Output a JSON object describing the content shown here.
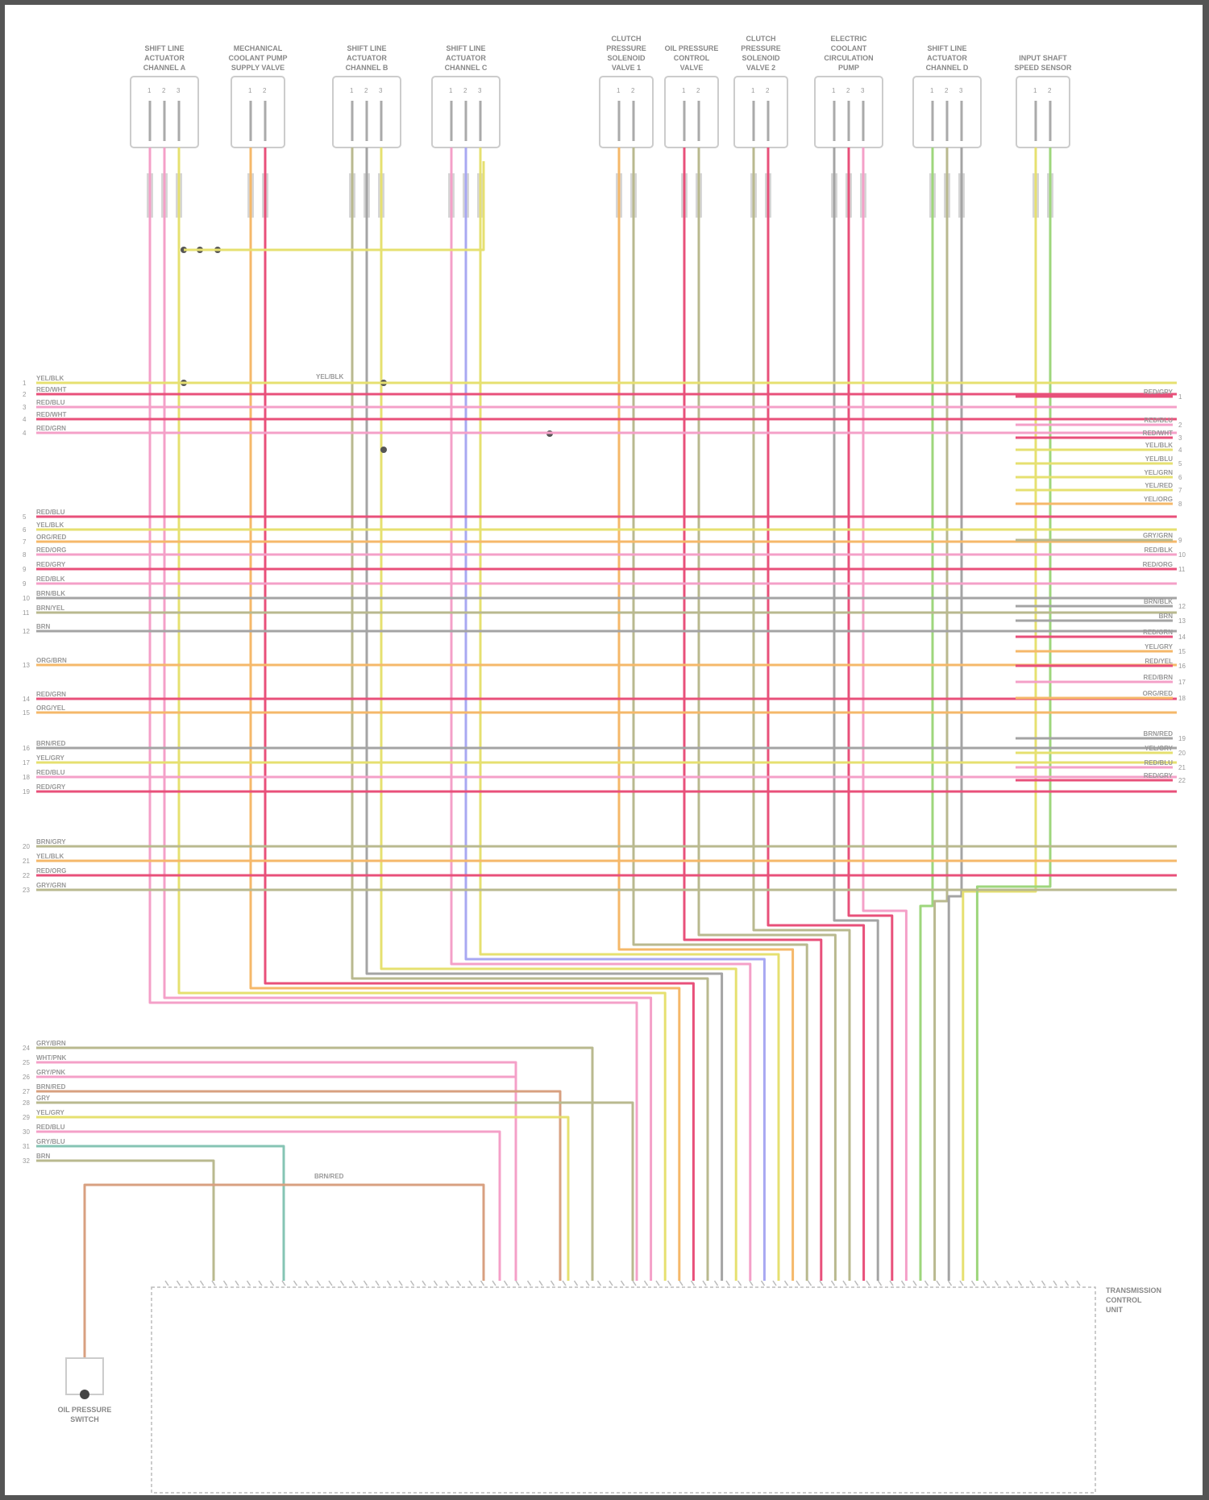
{
  "colors": {
    "yellow": "#e6e070",
    "pink": "#f4a0c8",
    "red": "#e8507a",
    "orange": "#f5b86a",
    "olive": "#b9b98f",
    "green": "#9ed67c",
    "blue": "#a8a8f2",
    "gray": "#a4a4a4",
    "teal": "#86c4b4",
    "brown": "#d8a080"
  },
  "components": [
    {
      "label": "SHIFT LINE ACTUATOR CHANNEL A",
      "pins": [
        "1",
        "2",
        "3"
      ],
      "wires": [
        "pink",
        "pink",
        "yellow"
      ]
    },
    {
      "label": "MECHANICAL COOLANT PUMP SUPPLY VALVE",
      "pins": [
        "1",
        "2"
      ],
      "wires": [
        "orange",
        "red"
      ]
    },
    {
      "label": "SHIFT LINE ACTUATOR CHANNEL B",
      "pins": [
        "1",
        "2",
        "3"
      ],
      "wires": [
        "olive",
        "gray",
        "yellow"
      ]
    },
    {
      "label": "SHIFT LINE ACTUATOR CHANNEL C",
      "pins": [
        "1",
        "2",
        "3"
      ],
      "wires": [
        "pink",
        "blue",
        "yellow"
      ]
    },
    {
      "label": "CLUTCH PRESSURE SOLENOID VALVE 1",
      "pins": [
        "1",
        "2"
      ],
      "wires": [
        "orange",
        "olive"
      ]
    },
    {
      "label": "OIL PRESSURE CONTROL VALVE",
      "pins": [
        "1",
        "2"
      ],
      "wires": [
        "red",
        "olive"
      ]
    },
    {
      "label": "CLUTCH PRESSURE SOLENOID VALVE 2",
      "pins": [
        "1",
        "2"
      ],
      "wires": [
        "olive",
        "red"
      ]
    },
    {
      "label": "ELECTRIC COOLANT CIRCULATION PUMP",
      "pins": [
        "1",
        "2",
        "3"
      ],
      "wires": [
        "gray",
        "red",
        "pink"
      ]
    },
    {
      "label": "SHIFT LINE ACTUATOR CHANNEL D",
      "pins": [
        "1",
        "2",
        "3"
      ],
      "wires": [
        "green",
        "olive",
        "gray"
      ]
    },
    {
      "label": "INPUT SHAFT SPEED SENSOR",
      "pins": [
        "1",
        "2"
      ],
      "wires": [
        "yellow",
        "green"
      ]
    }
  ],
  "left_rows": [
    {
      "pin": "1",
      "code": "YEL/BLK",
      "color": "yellow"
    },
    {
      "pin": "2",
      "code": "RED/WHT",
      "color": "red"
    },
    {
      "pin": "3",
      "code": "RED/BLU",
      "color": "pink"
    },
    {
      "pin": "4",
      "code": "RED/WHT",
      "color": "red"
    },
    {
      "pin": "4",
      "code": "RED/GRN",
      "color": "pink"
    },
    {
      "pin": "5",
      "code": "RED/BLU",
      "color": "red"
    },
    {
      "pin": "6",
      "code": "YEL/BLK",
      "color": "yellow"
    },
    {
      "pin": "7",
      "code": "ORG/RED",
      "color": "orange"
    },
    {
      "pin": "8",
      "code": "RED/ORG",
      "color": "pink"
    },
    {
      "pin": "9",
      "code": "RED/GRY",
      "color": "red"
    },
    {
      "pin": "9",
      "code": "RED/BLK",
      "color": "pink"
    },
    {
      "pin": "10",
      "code": "BRN/BLK",
      "color": "gray"
    },
    {
      "pin": "11",
      "code": "BRN/YEL",
      "color": "olive"
    },
    {
      "pin": "12",
      "code": "BRN",
      "color": "gray"
    },
    {
      "pin": "13",
      "code": "ORG/BRN",
      "color": "orange"
    },
    {
      "pin": "14",
      "code": "RED/GRN",
      "color": "red"
    },
    {
      "pin": "15",
      "code": "ORG/YEL",
      "color": "orange"
    },
    {
      "pin": "16",
      "code": "BRN/RED",
      "color": "gray"
    },
    {
      "pin": "17",
      "code": "YEL/GRY",
      "color": "yellow"
    },
    {
      "pin": "18",
      "code": "RED/BLU",
      "color": "pink"
    },
    {
      "pin": "19",
      "code": "RED/GRY",
      "color": "red"
    },
    {
      "pin": "20",
      "code": "BRN/GRY",
      "color": "olive"
    },
    {
      "pin": "21",
      "code": "YEL/BLK",
      "color": "orange"
    },
    {
      "pin": "22",
      "code": "RED/ORG",
      "color": "red"
    },
    {
      "pin": "23",
      "code": "GRY/GRN",
      "color": "olive"
    }
  ],
  "bottom_rows": [
    {
      "pin": "24",
      "code": "GRY/BRN",
      "color": "olive"
    },
    {
      "pin": "25",
      "code": "WHT/PNK",
      "color": "pink"
    },
    {
      "pin": "26",
      "code": "GRY/PNK",
      "color": "pink"
    },
    {
      "pin": "27",
      "code": "BRN/RED",
      "color": "brown"
    },
    {
      "pin": "28",
      "code": "GRY",
      "color": "olive"
    },
    {
      "pin": "29",
      "code": "YEL/GRY",
      "color": "yellow"
    },
    {
      "pin": "30",
      "code": "RED/BLU",
      "color": "pink"
    },
    {
      "pin": "31",
      "code": "GRY/BLU",
      "color": "teal"
    },
    {
      "pin": "32",
      "code": "BRN",
      "color": "olive"
    }
  ],
  "right_rows": [
    {
      "pin": "1",
      "code": "RED/GRY",
      "color": "red"
    },
    {
      "pin": "2",
      "code": "RED/BLU",
      "color": "pink"
    },
    {
      "pin": "3",
      "code": "RED/WHT",
      "color": "red"
    },
    {
      "pin": "4",
      "code": "YEL/BLK",
      "color": "yellow"
    },
    {
      "pin": "5",
      "code": "YEL/BLU",
      "color": "yellow"
    },
    {
      "pin": "6",
      "code": "YEL/GRN",
      "color": "yellow"
    },
    {
      "pin": "7",
      "code": "YEL/RED",
      "color": "yellow"
    },
    {
      "pin": "8",
      "code": "YEL/ORG",
      "color": "orange"
    },
    {
      "pin": "9",
      "code": "GRY/GRN",
      "color": "olive"
    },
    {
      "pin": "10",
      "code": "RED/BLK",
      "color": "pink"
    },
    {
      "pin": "11",
      "code": "RED/ORG",
      "color": "red"
    },
    {
      "pin": "12",
      "code": "BRN/BLK",
      "color": "gray"
    },
    {
      "pin": "13",
      "code": "BRN",
      "color": "gray"
    },
    {
      "pin": "14",
      "code": "RED/GRN",
      "color": "red"
    },
    {
      "pin": "15",
      "code": "YEL/GRY",
      "color": "orange"
    },
    {
      "pin": "16",
      "code": "RED/YEL",
      "color": "red"
    },
    {
      "pin": "17",
      "code": "RED/BRN",
      "color": "pink"
    },
    {
      "pin": "18",
      "code": "ORG/RED",
      "color": "orange"
    },
    {
      "pin": "19",
      "code": "BRN/RED",
      "color": "gray"
    },
    {
      "pin": "20",
      "code": "YEL/GRY",
      "color": "yellow"
    },
    {
      "pin": "21",
      "code": "RED/BLU",
      "color": "pink"
    },
    {
      "pin": "22",
      "code": "RED/GRY",
      "color": "red"
    }
  ],
  "splice_label": "YEL/BLK",
  "oil_switch": {
    "label": "OIL PRESSURE SWITCH",
    "wire": "brown",
    "code": "BRN/RED"
  },
  "tcu": {
    "label": "TRANSMISSION CONTROL UNIT"
  }
}
